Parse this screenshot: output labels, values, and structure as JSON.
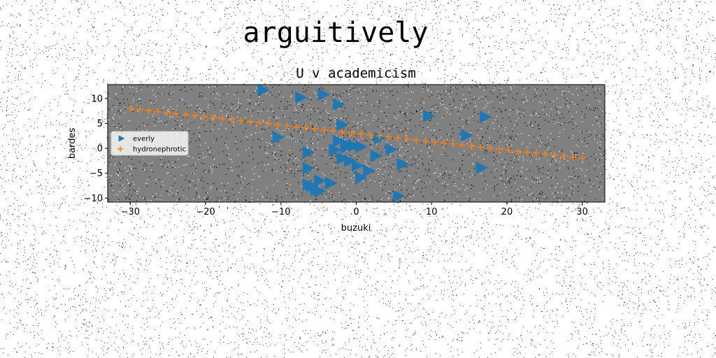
{
  "suptitle": "arguitively",
  "chart_data": {
    "type": "scatter",
    "title": "U v academicism",
    "xlabel": "buzuki",
    "ylabel": "bardes",
    "xlim": [
      -33,
      33
    ],
    "ylim": [
      -10.8,
      12.8
    ],
    "xticks": [
      -30,
      -20,
      -10,
      0,
      10,
      20,
      30
    ],
    "yticks": [
      -10,
      -5,
      0,
      5,
      10
    ],
    "grid": false,
    "legend_position": "center-left",
    "plot_background": "#808080",
    "series": [
      {
        "name": "everly",
        "marker": "triangle-right",
        "color": "#1f77b4",
        "x": [
          -12.5,
          -7.5,
          -4.5,
          -2.5,
          9.5,
          17.0,
          -2.0,
          -10.5,
          -2.5,
          14.5,
          3.0,
          -6.5,
          -3.0,
          -1.5,
          -0.5,
          0.5,
          4.5,
          -6.5,
          -2.0,
          -1.0,
          0.0,
          2.5,
          6.0,
          -6.5,
          1.5,
          -5.0,
          -3.5,
          -6.0,
          0.5,
          -5.5,
          -5.0,
          5.5,
          16.5,
          -1.5
        ],
        "y": [
          11.7,
          10.2,
          10.8,
          8.8,
          6.5,
          6.3,
          4.7,
          2.2,
          1.5,
          2.6,
          2.0,
          -0.8,
          -0.3,
          0.2,
          0.5,
          0.3,
          -0.2,
          -4.0,
          -2.0,
          -2.5,
          -3.5,
          -1.5,
          -3.2,
          -7.3,
          -4.5,
          -6.5,
          -7.0,
          -7.6,
          -5.9,
          -8.3,
          -8.6,
          -9.6,
          -3.9,
          0.8
        ]
      },
      {
        "name": "hydronephrotic",
        "marker": "plus",
        "color": "#ff7f0e",
        "x": [
          -30.0,
          -28.78,
          -27.55,
          -26.33,
          -25.1,
          -23.88,
          -22.65,
          -21.43,
          -20.2,
          -18.98,
          -17.76,
          -16.53,
          -15.31,
          -14.08,
          -12.86,
          -11.63,
          -10.41,
          -9.18,
          -7.96,
          -6.73,
          -5.51,
          -4.29,
          -3.06,
          -1.84,
          -0.61,
          0.61,
          1.84,
          3.06,
          4.29,
          5.51,
          6.73,
          7.96,
          9.18,
          10.41,
          11.63,
          12.86,
          14.08,
          15.31,
          16.53,
          17.76,
          18.98,
          20.2,
          21.43,
          22.65,
          23.88,
          25.1,
          26.33,
          27.55,
          28.78,
          30.0
        ],
        "y": [
          8.0,
          7.8,
          7.59,
          7.39,
          7.18,
          6.98,
          6.78,
          6.57,
          6.37,
          6.16,
          5.96,
          5.76,
          5.55,
          5.35,
          5.14,
          4.94,
          4.73,
          4.53,
          4.33,
          4.12,
          3.92,
          3.71,
          3.51,
          3.31,
          3.1,
          2.9,
          2.69,
          2.49,
          2.27,
          2.08,
          1.88,
          1.67,
          1.47,
          1.27,
          1.06,
          0.86,
          0.65,
          0.45,
          0.24,
          0.04,
          -0.16,
          -0.37,
          -0.57,
          -0.78,
          -0.98,
          -1.18,
          -1.39,
          -1.59,
          -1.8,
          -2.0
        ]
      }
    ]
  }
}
